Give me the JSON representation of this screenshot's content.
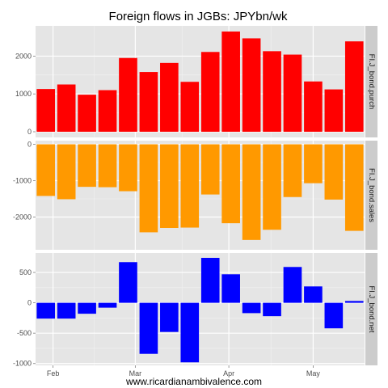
{
  "chart_data": {
    "type": "bar",
    "title": "Foreign flows in JGBs: JPYbn/wk",
    "xlabel": "www.ricardianambivalence.com",
    "x_ticks": [
      {
        "label": "Feb",
        "index": 0.35
      },
      {
        "label": "Mar",
        "index": 4.35
      },
      {
        "label": "Apr",
        "index": 8.9
      },
      {
        "label": "May",
        "index": 13.0
      }
    ],
    "grid": true,
    "panels": [
      {
        "strip": "FI.J_bond.purch",
        "color": "#ff0000",
        "ylim": [
          -150,
          2800
        ],
        "yticks": [
          0,
          1000,
          2000
        ],
        "values": [
          1130,
          1250,
          980,
          1100,
          1950,
          1580,
          1820,
          1320,
          2110,
          2650,
          2470,
          2130,
          2040,
          1330,
          1120,
          2390
        ]
      },
      {
        "strip": "FI.J_bond.sales",
        "color": "#ff9900",
        "ylim": [
          -2900,
          100
        ],
        "yticks": [
          -2000,
          -1000,
          0
        ],
        "values": [
          -1420,
          -1510,
          -1170,
          -1180,
          -1290,
          -2420,
          -2300,
          -2290,
          -1380,
          -2170,
          -2630,
          -2350,
          -1450,
          -1070,
          -1520,
          -2380
        ]
      },
      {
        "strip": "FI.J_bond.net",
        "color": "#0000ff",
        "ylim": [
          -1030,
          820
        ],
        "yticks": [
          -1000,
          -500,
          0,
          500
        ],
        "values": [
          -260,
          -260,
          -180,
          -80,
          670,
          -840,
          -480,
          -980,
          740,
          470,
          -170,
          -220,
          590,
          270,
          -420,
          30
        ]
      }
    ]
  }
}
